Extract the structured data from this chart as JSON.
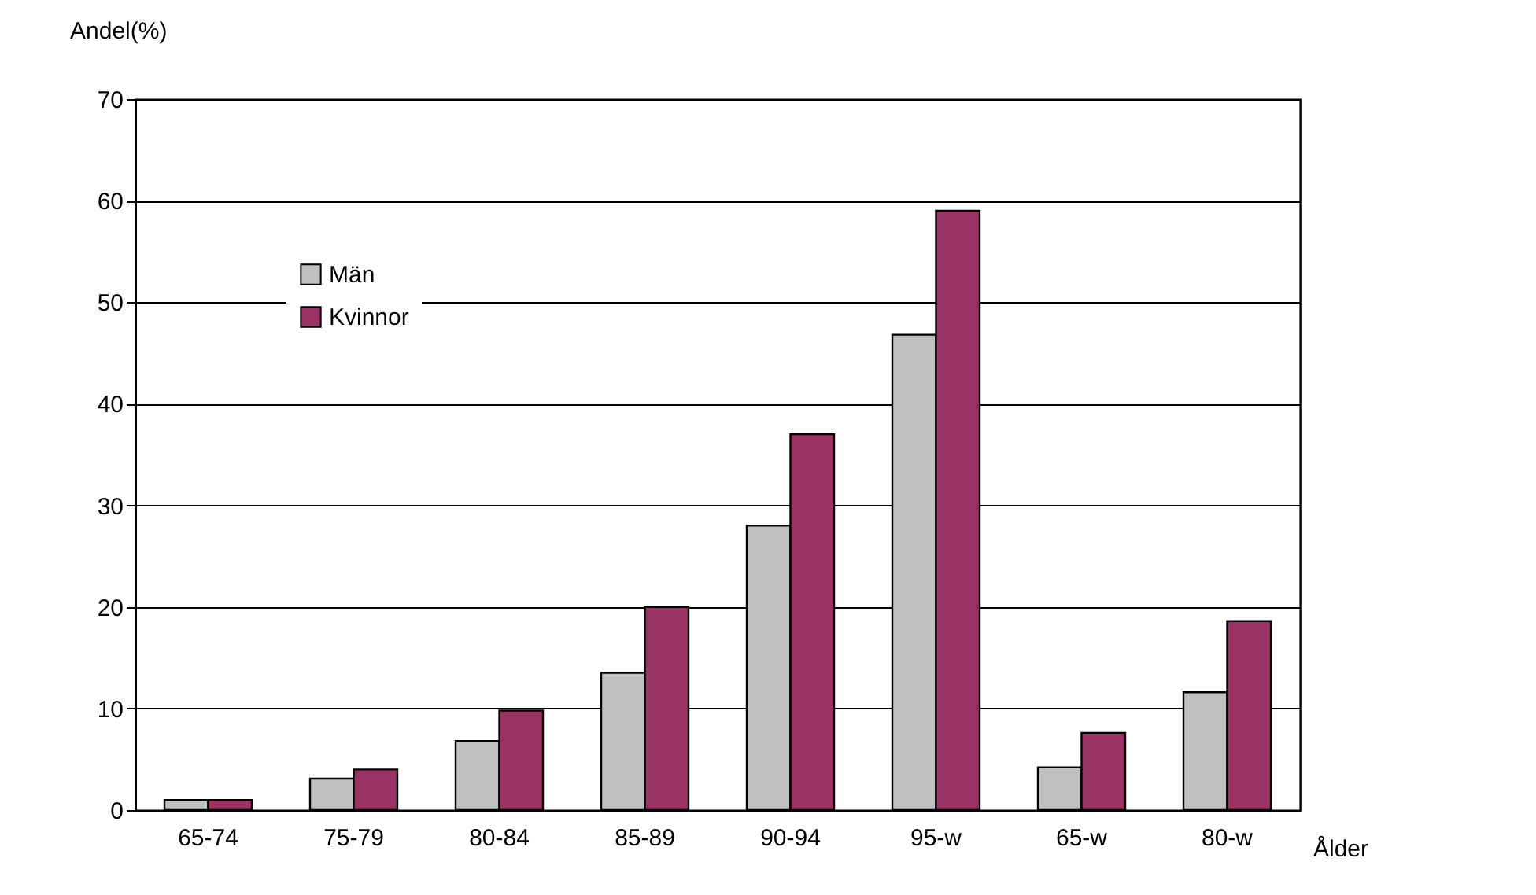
{
  "chart_data": {
    "type": "bar",
    "xlabel": "Ålder",
    "ylabel": "Andel(%)",
    "categories": [
      "65-74",
      "75-79",
      "80-84",
      "85-89",
      "90-94",
      "95-w",
      "65-w",
      "80-w"
    ],
    "series": [
      {
        "name": "Män",
        "color": "#c0c0c0",
        "values": [
          1,
          3.1,
          6.8,
          13.5,
          28,
          46.8,
          4.2,
          11.6
        ]
      },
      {
        "name": "Kvinnor",
        "color": "#993366",
        "values": [
          1,
          4,
          9.8,
          20,
          37,
          59,
          7.6,
          18.6
        ]
      }
    ],
    "ylim": [
      0,
      70
    ],
    "yticks": [
      0,
      10,
      20,
      30,
      40,
      50,
      60,
      70
    ],
    "grid": "y",
    "legend": "top left"
  }
}
